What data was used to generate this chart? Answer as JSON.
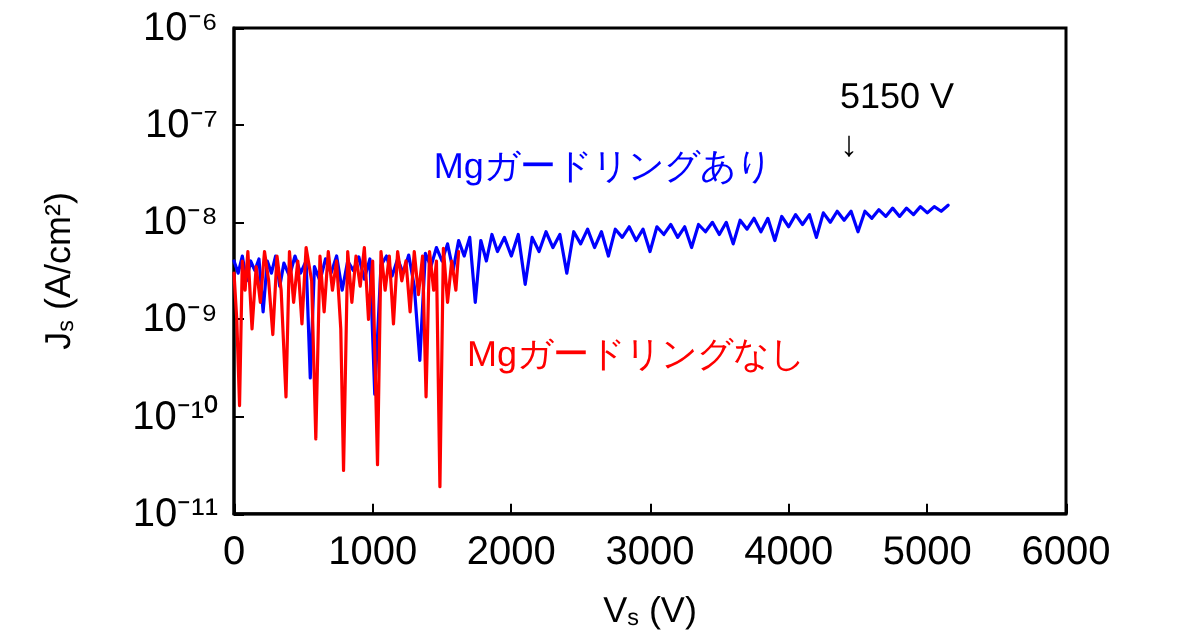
{
  "chart_data": {
    "type": "line",
    "xlabel": "V$_{s}$ (V)",
    "ylabel": "J$_{s}$ (A/cm²)",
    "log": "y",
    "grid": false,
    "legend": false,
    "marker": "none",
    "line_style": "solid",
    "xlim": [
      0,
      6000
    ],
    "xticks": [
      0,
      1000,
      2000,
      3000,
      4000,
      5000,
      6000
    ],
    "ylim": [
      1e-11,
      1e-06
    ],
    "yticks": [
      {
        "value": 1e-11,
        "label": "10⁻¹¹"
      },
      {
        "value": 1e-10,
        "label": "10⁻¹⁰"
      },
      {
        "value": 1e-09,
        "label": "10⁻⁹"
      },
      {
        "value": 1e-08,
        "label": "10⁻⁸"
      },
      {
        "value": 1e-07,
        "label": "10⁻⁷"
      },
      {
        "value": 1e-06,
        "label": "10⁻⁶"
      }
    ],
    "annotations": [
      "5150 V\n↓"
    ],
    "series": [
      {
        "name": "Mgガードリングあり",
        "color": "#0000ff",
        "x": [
          0,
          30,
          60,
          90,
          120,
          150,
          180,
          210,
          240,
          270,
          300,
          330,
          360,
          400,
          440,
          480,
          520,
          550,
          580,
          620,
          660,
          700,
          740,
          780,
          820,
          860,
          900,
          940,
          980,
          1015,
          1060,
          1100,
          1140,
          1180,
          1220,
          1260,
          1300,
          1340,
          1380,
          1420,
          1460,
          1500,
          1540,
          1580,
          1620,
          1660,
          1700,
          1740,
          1780,
          1820,
          1860,
          1900,
          1950,
          2000,
          2050,
          2100,
          2150,
          2200,
          2250,
          2300,
          2350,
          2400,
          2450,
          2500,
          2550,
          2600,
          2650,
          2700,
          2750,
          2800,
          2850,
          2900,
          2950,
          3000,
          3050,
          3100,
          3150,
          3200,
          3250,
          3300,
          3350,
          3400,
          3450,
          3500,
          3550,
          3600,
          3650,
          3700,
          3750,
          3800,
          3850,
          3900,
          3950,
          4000,
          4050,
          4100,
          4150,
          4200,
          4250,
          4300,
          4350,
          4400,
          4450,
          4500,
          4550,
          4600,
          4650,
          4700,
          4750,
          4800,
          4850,
          4900,
          4950,
          5000,
          5050,
          5100,
          5150
        ],
        "values": [
          4e-09,
          3e-09,
          4.5e-09,
          2.5e-09,
          4e-09,
          3.2e-09,
          4.2e-09,
          1.2e-09,
          4e-09,
          3e-09,
          4.5e-09,
          2.2e-09,
          3.8e-09,
          2.8e-09,
          4.5e-09,
          3e-09,
          4e-09,
          2.5e-10,
          3.5e-09,
          2.5e-09,
          4.2e-09,
          3e-09,
          4.5e-09,
          2e-09,
          4e-09,
          3.2e-09,
          4.4e-09,
          2.6e-09,
          4.2e-09,
          1.7e-10,
          3.6e-09,
          4.5e-09,
          2.8e-09,
          4.2e-09,
          3e-09,
          4.6e-09,
          2.2e-09,
          3.8e-10,
          4.8e-09,
          3.5e-09,
          5.5e-09,
          4e-09,
          6e-09,
          3.2e-09,
          6.5e-09,
          4.5e-09,
          7e-09,
          1.5e-09,
          6.5e-09,
          4e-09,
          7.5e-09,
          5e-09,
          7e-09,
          4.5e-09,
          7.5e-09,
          2.3e-09,
          7e-09,
          5e-09,
          8e-09,
          5.5e-09,
          7.5e-09,
          3e-09,
          8e-09,
          6e-09,
          8.5e-09,
          5.5e-09,
          8e-09,
          4.5e-09,
          8.5e-09,
          7e-09,
          9e-09,
          6.5e-09,
          8.5e-09,
          5e-09,
          9e-09,
          7.5e-09,
          9.5e-09,
          7e-09,
          9e-09,
          5.5e-09,
          9.5e-09,
          8e-09,
          1e-08,
          7.5e-09,
          1e-08,
          6e-09,
          1.05e-08,
          8.5e-09,
          1.1e-08,
          8e-09,
          1.1e-08,
          6.5e-09,
          1.15e-08,
          9e-09,
          1.2e-08,
          9.5e-09,
          1.2e-08,
          7e-09,
          1.25e-08,
          1e-08,
          1.3e-08,
          1.05e-08,
          1.3e-08,
          8e-09,
          1.3e-08,
          1.1e-08,
          1.35e-08,
          1.15e-08,
          1.4e-08,
          1.15e-08,
          1.4e-08,
          1.2e-08,
          1.45e-08,
          1.25e-08,
          1.45e-08,
          1.3e-08,
          1.5e-08
        ]
      },
      {
        "name": "Mgガードリングなし",
        "color": "#ff0000",
        "x": [
          0,
          20,
          40,
          60,
          80,
          100,
          130,
          160,
          190,
          220,
          250,
          280,
          310,
          340,
          375,
          400,
          430,
          460,
          490,
          520,
          560,
          590,
          620,
          650,
          680,
          710,
          740,
          770,
          790,
          820,
          850,
          880,
          910,
          940,
          970,
          1000,
          1035,
          1060,
          1090,
          1120,
          1150,
          1180,
          1210,
          1240,
          1270,
          1300,
          1330,
          1360,
          1385,
          1410,
          1440,
          1460,
          1485,
          1510,
          1540,
          1570,
          1600,
          1620
        ],
        "values": [
          3e-09,
          1e-09,
          1.3e-10,
          4e-09,
          2e-09,
          5e-09,
          8e-10,
          3.5e-09,
          1.5e-09,
          5e-09,
          2.5e-09,
          7e-10,
          4.5e-09,
          2e-09,
          1.6e-10,
          5e-09,
          1.5e-09,
          4e-09,
          9e-10,
          5.5e-09,
          2.5e-09,
          5.9e-11,
          4.5e-09,
          1.2e-09,
          5e-09,
          2e-09,
          4e-09,
          8e-10,
          2.8e-11,
          5e-09,
          1.5e-09,
          4.5e-09,
          2.2e-09,
          5.5e-09,
          1e-09,
          4e-09,
          3.2e-11,
          5e-09,
          2e-09,
          4.5e-09,
          9e-10,
          5e-09,
          2.5e-09,
          4e-09,
          1.2e-09,
          5e-09,
          1.8e-09,
          4.5e-09,
          1.6e-10,
          5e-09,
          2e-09,
          4e-09,
          1.9e-11,
          5.4e-09,
          1.5e-09,
          4e-09,
          2e-09,
          5e-09
        ]
      }
    ]
  }
}
